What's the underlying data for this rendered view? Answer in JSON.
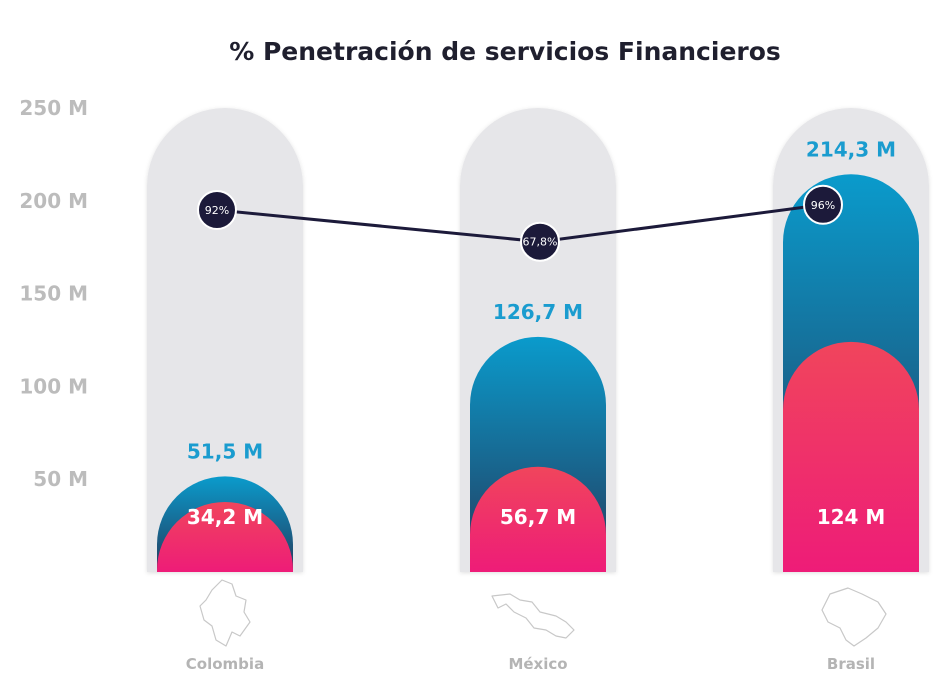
{
  "chart_data": {
    "type": "bar",
    "title": "% Penetración de servicios Financieros",
    "categories": [
      "Colombia",
      "México",
      "Brasil"
    ],
    "yticks": [
      "50 M",
      "100 M",
      "150 M",
      "200 M",
      "250 M"
    ],
    "ylim": [
      0,
      250
    ],
    "grid": false,
    "series": [
      {
        "values": [
          51.5,
          126.7,
          214.3
        ],
        "labels": [
          "51,5 M",
          "126,7 M",
          "214,3 M"
        ]
      },
      {
        "values": [
          34.2,
          56.7,
          124
        ],
        "labels": [
          "34,2 M",
          "56,7 M",
          "124 M"
        ]
      }
    ],
    "line_series": {
      "values": [
        92,
        67.8,
        96
      ],
      "labels": [
        "92%",
        "67,8%",
        "96%"
      ]
    }
  },
  "colors": {
    "track": "#e6e6e9",
    "total_top": "#0a9bcc",
    "total_bottom": "#243a5c",
    "sub_top": "#f0455c",
    "sub_bottom": "#ee1c78",
    "total_label": "#1a9ccf",
    "line": "#1c1a3a",
    "marker": "#1c1a3a"
  },
  "icons": [
    "colombia-map-icon",
    "mexico-map-icon",
    "brasil-map-icon"
  ]
}
